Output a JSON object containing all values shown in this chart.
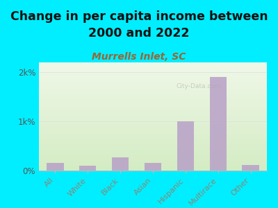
{
  "title": "Change in per capita income between\n2000 and 2022",
  "subtitle": "Murrells Inlet, SC",
  "categories": [
    "All",
    "White",
    "Black",
    "Asian",
    "Hispanic",
    "Multirace",
    "Other"
  ],
  "values": [
    150,
    100,
    275,
    150,
    1000,
    1900,
    110
  ],
  "bar_color": "#b8a0c8",
  "background_outer": "#00eeff",
  "background_plot_top": "#f0f8e8",
  "background_plot_bottom": "#d4ecc4",
  "title_fontsize": 12.5,
  "subtitle_fontsize": 10,
  "subtitle_color": "#996633",
  "ytick_labels": [
    "0%",
    "1k%",
    "2k%"
  ],
  "ytick_values": [
    0,
    1000,
    2000
  ],
  "ylim": [
    0,
    2200
  ],
  "watermark": "City-Data.com",
  "xlabel_color": "#888877",
  "title_color": "#111111"
}
